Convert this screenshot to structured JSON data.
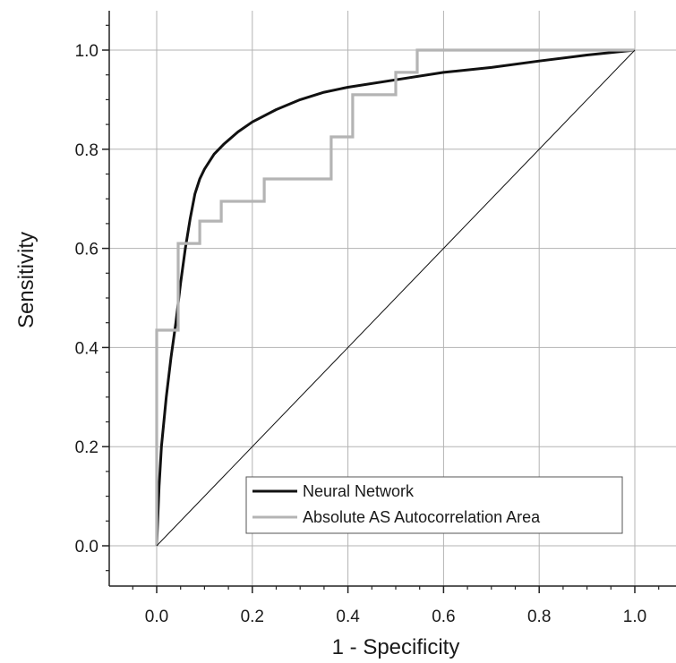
{
  "chart_data": {
    "type": "line",
    "title": "",
    "xlabel": "1 - Specificity",
    "ylabel": "Sensitivity",
    "xlim": [
      -0.1,
      1.08
    ],
    "ylim": [
      -0.08,
      1.08
    ],
    "grid": true,
    "legend_position": "bottom-right",
    "x_ticks": [
      0.0,
      0.2,
      0.4,
      0.6,
      0.8,
      1.0
    ],
    "x_tick_labels": [
      "0.0",
      "0.2",
      "0.4",
      "0.6",
      "0.8",
      "1.0"
    ],
    "y_ticks": [
      0.0,
      0.2,
      0.4,
      0.6,
      0.8,
      1.0
    ],
    "y_tick_labels": [
      "0.0",
      "0.2",
      "0.4",
      "0.6",
      "0.8",
      "1.0"
    ],
    "series": [
      {
        "name": "Neural Network",
        "color": "#111111",
        "style": "smooth",
        "x": [
          0.0,
          0.005,
          0.01,
          0.02,
          0.03,
          0.04,
          0.05,
          0.06,
          0.07,
          0.08,
          0.09,
          0.1,
          0.12,
          0.14,
          0.17,
          0.2,
          0.25,
          0.3,
          0.35,
          0.4,
          0.5,
          0.6,
          0.7,
          0.8,
          0.9,
          1.0
        ],
        "y": [
          0.0,
          0.12,
          0.2,
          0.3,
          0.38,
          0.45,
          0.53,
          0.6,
          0.66,
          0.71,
          0.74,
          0.76,
          0.79,
          0.81,
          0.835,
          0.855,
          0.88,
          0.9,
          0.915,
          0.925,
          0.94,
          0.955,
          0.965,
          0.978,
          0.99,
          1.0
        ]
      },
      {
        "name": "Absolute AS Autocorrelation Area",
        "color": "#b4b4b4",
        "style": "step",
        "x": [
          0.0,
          0.0,
          0.045,
          0.045,
          0.09,
          0.09,
          0.135,
          0.135,
          0.225,
          0.225,
          0.365,
          0.365,
          0.41,
          0.41,
          0.5,
          0.5,
          0.545,
          0.545,
          1.0
        ],
        "y": [
          0.0,
          0.435,
          0.435,
          0.61,
          0.61,
          0.655,
          0.655,
          0.695,
          0.695,
          0.74,
          0.74,
          0.825,
          0.825,
          0.91,
          0.91,
          0.955,
          0.955,
          1.0,
          1.0
        ]
      },
      {
        "name": "",
        "color": "#111111",
        "style": "reference",
        "x": [
          0.0,
          1.0
        ],
        "y": [
          0.0,
          1.0
        ]
      }
    ]
  }
}
